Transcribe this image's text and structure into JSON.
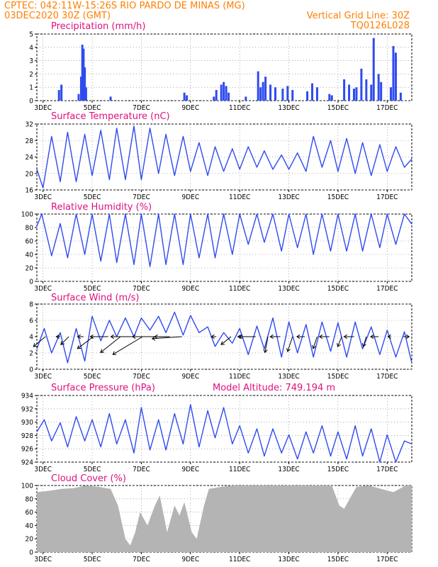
{
  "header": {
    "line1": "CPTEC:   042:11W-15:26S  RIO PARDO DE MINAS (MG)",
    "line2": "03DEC2020 30Z (GMT)",
    "grid_note": "Vertical Grid Line: 30Z",
    "code": "TQ0126L028"
  },
  "colors": {
    "header": "#ff7f00",
    "title": "#e0107f",
    "series": "#2f4bef",
    "cloud": "#b4b4b4",
    "arrow": "#000000"
  },
  "x_axis": {
    "ticks": [
      "3DEC",
      "5DEC",
      "7DEC",
      "9DEC",
      "11DEC",
      "13DEC",
      "15DEC",
      "17DEC"
    ],
    "start_day": 3,
    "end_day": 18.25
  },
  "chart_data": [
    {
      "type": "bar",
      "title": "Precipitation (mm/h)",
      "ylim": [
        0,
        5
      ],
      "yticks": [
        "0",
        "1",
        "2",
        "3",
        "4",
        "5"
      ],
      "grid": true,
      "x": [
        3.9,
        4.0,
        4.7,
        4.8,
        4.85,
        4.9,
        4.95,
        5.0,
        6.0,
        9.0,
        9.1,
        10.2,
        10.3,
        10.5,
        10.6,
        10.7,
        10.8,
        11.5,
        12.0,
        12.1,
        12.2,
        12.3,
        12.5,
        12.7,
        13.0,
        13.2,
        13.4,
        14.0,
        14.2,
        14.4,
        14.9,
        15.0,
        15.5,
        15.7,
        15.9,
        16.0,
        16.2,
        16.4,
        16.6,
        16.7,
        16.9,
        17.0,
        17.4,
        17.5,
        17.6,
        17.8
      ],
      "values": [
        0.8,
        1.2,
        0.5,
        1.8,
        4.2,
        3.9,
        2.5,
        1.0,
        0.3,
        0.6,
        0.4,
        0.3,
        0.8,
        1.2,
        1.4,
        1.1,
        0.6,
        0.3,
        2.2,
        1.0,
        1.4,
        1.8,
        1.2,
        1.0,
        0.9,
        1.1,
        0.8,
        0.7,
        1.3,
        1.0,
        0.5,
        0.4,
        1.6,
        1.2,
        0.9,
        1.0,
        2.4,
        1.6,
        1.2,
        4.7,
        2.0,
        1.4,
        1.0,
        4.1,
        3.6,
        0.6
      ]
    },
    {
      "type": "line",
      "title": "Surface Temperature (nC)",
      "ylim": [
        16,
        32
      ],
      "yticks": [
        "16",
        "20",
        "24",
        "28",
        "32"
      ],
      "grid": true,
      "x": [
        3.0,
        3.25,
        3.6,
        3.95,
        4.25,
        4.6,
        4.95,
        5.25,
        5.6,
        5.95,
        6.25,
        6.6,
        6.95,
        7.25,
        7.6,
        7.95,
        8.25,
        8.6,
        8.95,
        9.25,
        9.6,
        9.95,
        10.25,
        10.6,
        10.95,
        11.25,
        11.6,
        11.95,
        12.25,
        12.6,
        12.95,
        13.25,
        13.6,
        13.95,
        14.25,
        14.6,
        14.95,
        15.25,
        15.6,
        15.95,
        16.25,
        16.6,
        16.95,
        17.25,
        17.6,
        17.95,
        18.25
      ],
      "values": [
        21.0,
        16.5,
        29.0,
        18.0,
        30.0,
        18.0,
        29.5,
        19.5,
        30.5,
        18.5,
        31.0,
        18.5,
        31.5,
        18.5,
        31.0,
        20.0,
        29.5,
        19.5,
        29.0,
        20.5,
        27.5,
        19.5,
        26.5,
        20.5,
        26.0,
        21.0,
        26.5,
        21.5,
        25.5,
        21.0,
        24.5,
        21.0,
        25.0,
        20.5,
        29.0,
        21.5,
        28.0,
        20.5,
        28.5,
        20.0,
        27.5,
        19.5,
        27.0,
        20.5,
        26.5,
        21.5,
        23.5
      ]
    },
    {
      "type": "line",
      "title": "Relative Humidity (%)",
      "ylim": [
        0,
        100
      ],
      "yticks": [
        "0",
        "20",
        "40",
        "60",
        "80",
        "100"
      ],
      "grid": true,
      "x": [
        3.0,
        3.2,
        3.6,
        3.95,
        4.25,
        4.6,
        4.95,
        5.25,
        5.6,
        5.95,
        6.25,
        6.6,
        6.95,
        7.25,
        7.6,
        7.95,
        8.25,
        8.6,
        8.95,
        9.25,
        9.6,
        9.95,
        10.25,
        10.6,
        10.95,
        11.25,
        11.6,
        11.95,
        12.25,
        12.6,
        12.95,
        13.25,
        13.6,
        13.95,
        14.25,
        14.6,
        14.95,
        15.25,
        15.6,
        15.95,
        16.25,
        16.6,
        16.95,
        17.25,
        17.6,
        17.95,
        18.25
      ],
      "values": [
        82.0,
        100.0,
        38.0,
        86.0,
        35.0,
        100.0,
        40.0,
        100.0,
        30.0,
        100.0,
        28.0,
        100.0,
        25.0,
        100.0,
        22.0,
        100.0,
        25.0,
        100.0,
        25.0,
        100.0,
        35.0,
        100.0,
        35.0,
        100.0,
        40.0,
        100.0,
        55.0,
        100.0,
        58.0,
        100.0,
        45.0,
        100.0,
        50.0,
        100.0,
        40.0,
        100.0,
        45.0,
        100.0,
        45.0,
        100.0,
        45.0,
        100.0,
        50.0,
        100.0,
        55.0,
        100.0,
        85.0
      ]
    },
    {
      "type": "line",
      "title": "Surface Wind (m/s)",
      "ylim": [
        0,
        8
      ],
      "yticks": [
        "0",
        "2",
        "4",
        "6",
        "8"
      ],
      "grid": true,
      "x": [
        3.0,
        3.3,
        3.6,
        3.95,
        4.25,
        4.6,
        4.95,
        5.25,
        5.6,
        5.95,
        6.25,
        6.6,
        6.95,
        7.25,
        7.6,
        7.95,
        8.25,
        8.6,
        8.95,
        9.25,
        9.6,
        9.95,
        10.25,
        10.6,
        10.95,
        11.25,
        11.6,
        11.95,
        12.25,
        12.6,
        12.95,
        13.25,
        13.6,
        13.95,
        14.25,
        14.6,
        14.95,
        15.25,
        15.6,
        15.95,
        16.25,
        16.6,
        16.95,
        17.25,
        17.6,
        17.95,
        18.25
      ],
      "values": [
        2.5,
        5.0,
        2.0,
        4.5,
        0.8,
        5.0,
        1.0,
        6.5,
        3.5,
        6.0,
        4.0,
        6.3,
        4.0,
        6.3,
        4.8,
        6.5,
        4.5,
        7.0,
        4.2,
        6.6,
        4.5,
        5.2,
        2.8,
        4.5,
        3.2,
        5.0,
        1.8,
        5.3,
        2.5,
        6.3,
        1.5,
        5.8,
        2.0,
        5.5,
        1.5,
        5.8,
        2.2,
        5.7,
        1.5,
        5.8,
        2.5,
        5.2,
        1.8,
        4.8,
        1.5,
        4.6,
        0.8
      ]
    },
    {
      "type": "line",
      "title": "Surface Pressure (hPa)",
      "annotation": "Model Altitude: 749.194 m",
      "ylim": [
        924,
        935
      ],
      "yticks": [
        "924",
        "926",
        "928",
        "930",
        "932",
        "934"
      ],
      "grid": true,
      "x": [
        3.0,
        3.3,
        3.6,
        3.95,
        4.25,
        4.6,
        4.95,
        5.25,
        5.6,
        5.95,
        6.25,
        6.6,
        6.95,
        7.25,
        7.6,
        7.95,
        8.25,
        8.6,
        8.95,
        9.25,
        9.6,
        9.95,
        10.25,
        10.6,
        10.95,
        11.25,
        11.6,
        11.95,
        12.25,
        12.6,
        12.95,
        13.25,
        13.6,
        13.95,
        14.25,
        14.6,
        14.95,
        15.25,
        15.6,
        15.95,
        16.25,
        16.6,
        16.95,
        17.25,
        17.6,
        17.95,
        18.25
      ],
      "values": [
        929.0,
        931.0,
        927.5,
        930.5,
        926.5,
        931.5,
        927.5,
        931.0,
        926.5,
        932.0,
        927.0,
        931.0,
        925.5,
        933.0,
        926.0,
        931.0,
        926.0,
        932.0,
        927.0,
        933.5,
        926.5,
        932.5,
        928.0,
        933.0,
        927.0,
        930.0,
        925.5,
        929.5,
        925.0,
        929.5,
        925.5,
        928.5,
        924.5,
        929.0,
        925.5,
        930.0,
        925.0,
        929.0,
        924.5,
        930.0,
        925.0,
        929.5,
        924.0,
        928.5,
        924.0,
        927.5,
        927.0
      ]
    },
    {
      "type": "area",
      "title": "Cloud Cover (%)",
      "ylim": [
        0,
        100
      ],
      "yticks": [
        "0",
        "20",
        "40",
        "60",
        "80",
        "100"
      ],
      "grid": true,
      "x": [
        3.0,
        3.5,
        4.0,
        4.5,
        5.0,
        5.5,
        6.0,
        6.3,
        6.6,
        6.8,
        7.0,
        7.2,
        7.5,
        7.8,
        8.0,
        8.3,
        8.6,
        8.8,
        9.0,
        9.3,
        9.5,
        9.8,
        10.0,
        10.5,
        11.0,
        12.0,
        13.0,
        14.0,
        15.0,
        15.3,
        15.5,
        15.8,
        16.0,
        16.5,
        17.0,
        17.5,
        18.0,
        18.25
      ],
      "values": [
        90,
        92,
        95,
        96,
        100,
        98,
        95,
        70,
        20,
        10,
        30,
        60,
        40,
        70,
        85,
        30,
        70,
        55,
        75,
        30,
        20,
        70,
        95,
        98,
        100,
        100,
        100,
        100,
        100,
        70,
        65,
        85,
        98,
        100,
        95,
        90,
        100,
        100
      ]
    }
  ],
  "wind_arrows": {
    "note": "direction vectors (u,v) at sampled times, plotted at y=4",
    "x": [
      3.35,
      3.95,
      4.3,
      4.9,
      5.3,
      5.9,
      6.4,
      6.9,
      7.3,
      7.9,
      8.4,
      8.9,
      10.3,
      10.9,
      11.4,
      11.9,
      12.4,
      12.9,
      13.4,
      13.9,
      14.4,
      14.9,
      15.4,
      15.9,
      16.4,
      16.9,
      17.4,
      17.9
    ],
    "u": [
      -1.2,
      -0.4,
      -0.8,
      -0.6,
      -1.6,
      -1.8,
      -2.0,
      -2.2,
      -3.0,
      -2.5,
      -1.5,
      -3.0,
      -0.5,
      -1.0,
      -0.4,
      -1.8,
      -0.3,
      -1.0,
      -0.5,
      -0.8,
      -0.4,
      -1.0,
      -0.4,
      -1.0,
      -0.3,
      -0.8,
      -0.3,
      0.6
    ],
    "v": [
      -1.0,
      0.0,
      -0.8,
      0.0,
      -1.2,
      0.0,
      -1.6,
      0.0,
      -1.8,
      0.0,
      0.0,
      -0.2,
      0.0,
      -0.8,
      0.0,
      0.0,
      -1.6,
      0.0,
      -1.5,
      0.0,
      -1.2,
      0.0,
      -1.0,
      0.0,
      -1.0,
      0.0,
      0.0,
      0.0
    ]
  },
  "panels": [
    {
      "title": "Precipitation (mm/h)"
    },
    {
      "title": "Surface Temperature (nC)"
    },
    {
      "title": "Relative Humidity (%)"
    },
    {
      "title": "Surface Wind (m/s)"
    },
    {
      "title": "Surface Pressure (hPa)",
      "annotation": "Model Altitude: 749.194 m"
    },
    {
      "title": "Cloud Cover (%)"
    }
  ]
}
